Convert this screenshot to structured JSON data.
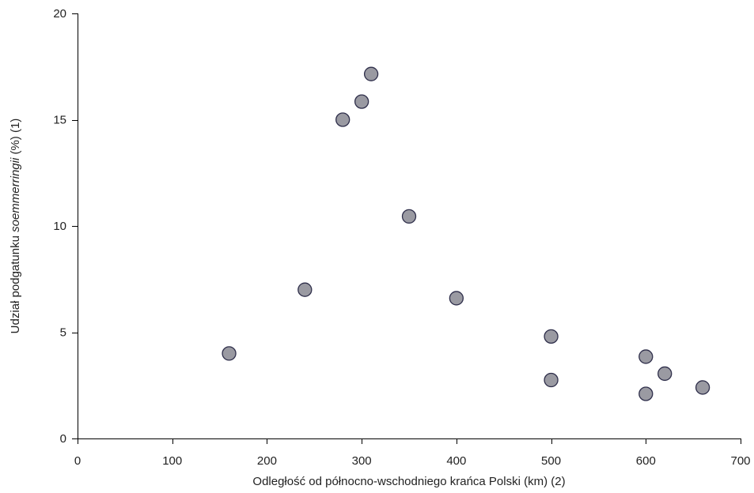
{
  "chart_data": {
    "type": "scatter",
    "title": "",
    "xlabel": "Odległość od północno-wschodniego krańca Polski (km) (2)",
    "ylabel": {
      "prefix": "Udział podgatunku ",
      "italic": "soemmerringii",
      "suffix": " (%) (1)"
    },
    "xlim": [
      0,
      700
    ],
    "ylim": [
      0,
      20
    ],
    "xticks": [
      0,
      100,
      200,
      300,
      400,
      500,
      600,
      700
    ],
    "yticks": [
      0,
      5,
      10,
      15,
      20
    ],
    "grid": false,
    "point_color": "#9a9aa2",
    "point_edge_color": "#2e2e4a",
    "points": [
      {
        "x": 160,
        "y": 4.0
      },
      {
        "x": 240,
        "y": 7.0
      },
      {
        "x": 280,
        "y": 15.0
      },
      {
        "x": 300,
        "y": 15.85
      },
      {
        "x": 310,
        "y": 17.15
      },
      {
        "x": 350,
        "y": 10.45
      },
      {
        "x": 400,
        "y": 6.6
      },
      {
        "x": 500,
        "y": 4.8
      },
      {
        "x": 500,
        "y": 2.75
      },
      {
        "x": 600,
        "y": 3.85
      },
      {
        "x": 600,
        "y": 2.1
      },
      {
        "x": 620,
        "y": 3.05
      },
      {
        "x": 660,
        "y": 2.4
      }
    ]
  }
}
